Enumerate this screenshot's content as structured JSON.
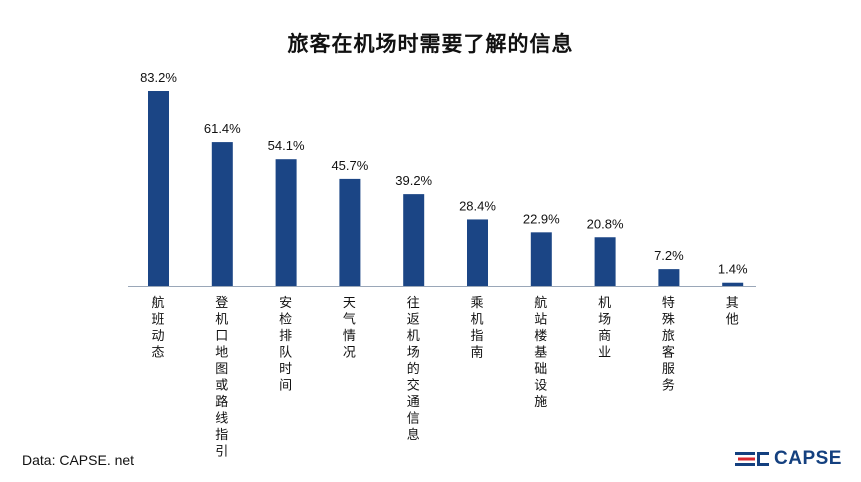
{
  "chart_data": {
    "type": "bar",
    "title": "旅客在机场时需要了解的信息",
    "categories": [
      "航班动态",
      "登机口地图或路线指引",
      "安检排队时间",
      "天气情况",
      "往返机场的交通信息",
      "乘机指南",
      "航站楼基础设施",
      "机场商业",
      "特殊旅客服务",
      "其他"
    ],
    "values": [
      83.2,
      61.4,
      54.1,
      45.7,
      39.2,
      28.4,
      22.9,
      20.8,
      7.2,
      1.4
    ],
    "value_labels": [
      "83.2%",
      "61.4%",
      "54.1%",
      "45.7%",
      "39.2%",
      "28.4%",
      "22.9%",
      "20.8%",
      "7.2%",
      "1.4%"
    ],
    "unit": "%",
    "ylim": [
      0,
      100
    ],
    "grid": false,
    "legend": "none",
    "colors": {
      "bar": "#1b4585",
      "axis": "#9aa7b8",
      "text": "#111111"
    }
  },
  "footer": {
    "source": "Data: CAPSE. net",
    "logo_text": "CAPSE",
    "logo_icon": "capse-logo-icon",
    "logo_color": "#14407f",
    "logo_accent": "#d8262e"
  }
}
